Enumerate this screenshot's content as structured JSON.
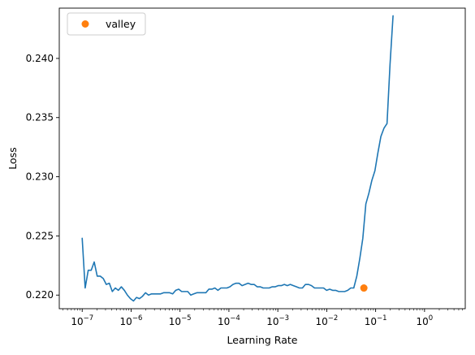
{
  "chart_data": {
    "type": "line",
    "xlabel": "Learning Rate",
    "ylabel": "Loss",
    "xscale": "log",
    "xlim": [
      3.4e-08,
      6.8
    ],
    "ylim": [
      0.21885,
      0.24425
    ],
    "x_ticks": [
      {
        "value": 1e-07,
        "base": "10",
        "exp": "−7"
      },
      {
        "value": 1e-06,
        "base": "10",
        "exp": "−6"
      },
      {
        "value": 1e-05,
        "base": "10",
        "exp": "−5"
      },
      {
        "value": 0.0001,
        "base": "10",
        "exp": "−4"
      },
      {
        "value": 0.001,
        "base": "10",
        "exp": "−3"
      },
      {
        "value": 0.01,
        "base": "10",
        "exp": "−2"
      },
      {
        "value": 0.1,
        "base": "10",
        "exp": "−1"
      },
      {
        "value": 1,
        "base": "10",
        "exp": "0"
      }
    ],
    "y_ticks": [
      {
        "value": 0.22,
        "label": "0.220"
      },
      {
        "value": 0.225,
        "label": "0.225"
      },
      {
        "value": 0.23,
        "label": "0.230"
      },
      {
        "value": 0.235,
        "label": "0.235"
      },
      {
        "value": 0.24,
        "label": "0.240"
      }
    ],
    "series": [
      {
        "color": "#1f77b4",
        "points": [
          [
            1e-07,
            0.2248
          ],
          [
            1.15e-07,
            0.2206
          ],
          [
            1.33e-07,
            0.2221
          ],
          [
            1.53e-07,
            0.2221
          ],
          [
            1.76e-07,
            0.2228
          ],
          [
            2.03e-07,
            0.2216
          ],
          [
            2.34e-07,
            0.2216
          ],
          [
            2.7e-07,
            0.2214
          ],
          [
            3.11e-07,
            0.2209
          ],
          [
            3.59e-07,
            0.221
          ],
          [
            4.13e-07,
            0.2203
          ],
          [
            4.76e-07,
            0.2206
          ],
          [
            5.49e-07,
            0.2204
          ],
          [
            6.32e-07,
            0.2207
          ],
          [
            7.29e-07,
            0.2204
          ],
          [
            8.4e-07,
            0.22
          ],
          [
            9.69e-07,
            0.2197
          ],
          [
            1.12e-06,
            0.2195
          ],
          [
            1.29e-06,
            0.2198
          ],
          [
            1.48e-06,
            0.2197
          ],
          [
            1.71e-06,
            0.2199
          ],
          [
            1.97e-06,
            0.2202
          ],
          [
            2.27e-06,
            0.22
          ],
          [
            2.62e-06,
            0.2201
          ],
          [
            3.02e-06,
            0.2201
          ],
          [
            3.48e-06,
            0.2201
          ],
          [
            4.01e-06,
            0.2201
          ],
          [
            4.62e-06,
            0.2202
          ],
          [
            5.33e-06,
            0.2202
          ],
          [
            6.14e-06,
            0.2202
          ],
          [
            7.08e-06,
            0.2201
          ],
          [
            8.16e-06,
            0.2204
          ],
          [
            9.41e-06,
            0.2205
          ],
          [
            1.08e-05,
            0.2203
          ],
          [
            1.25e-05,
            0.2203
          ],
          [
            1.44e-05,
            0.2203
          ],
          [
            1.66e-05,
            0.22
          ],
          [
            1.91e-05,
            0.2201
          ],
          [
            2.21e-05,
            0.2202
          ],
          [
            2.54e-05,
            0.2202
          ],
          [
            2.93e-05,
            0.2202
          ],
          [
            3.38e-05,
            0.2202
          ],
          [
            3.89e-05,
            0.2205
          ],
          [
            4.49e-05,
            0.2205
          ],
          [
            5.17e-05,
            0.2206
          ],
          [
            5.96e-05,
            0.2204
          ],
          [
            6.87e-05,
            0.2206
          ],
          [
            7.92e-05,
            0.2206
          ],
          [
            9.13e-05,
            0.2206
          ],
          [
            0.000105,
            0.2207
          ],
          [
            0.000121,
            0.2209
          ],
          [
            0.00014,
            0.221
          ],
          [
            0.000161,
            0.221
          ],
          [
            0.000186,
            0.2208
          ],
          [
            0.000214,
            0.2209
          ],
          [
            0.000247,
            0.221
          ],
          [
            0.000284,
            0.2209
          ],
          [
            0.000328,
            0.2209
          ],
          [
            0.000378,
            0.2207
          ],
          [
            0.000436,
            0.2207
          ],
          [
            0.000502,
            0.2206
          ],
          [
            0.000579,
            0.2206
          ],
          [
            0.000667,
            0.2206
          ],
          [
            0.000769,
            0.2207
          ],
          [
            0.000887,
            0.2207
          ],
          [
            0.00102,
            0.2208
          ],
          [
            0.00118,
            0.2208
          ],
          [
            0.00136,
            0.2209
          ],
          [
            0.00156,
            0.2208
          ],
          [
            0.0018,
            0.2209
          ],
          [
            0.00208,
            0.2208
          ],
          [
            0.0024,
            0.2207
          ],
          [
            0.00276,
            0.2206
          ],
          [
            0.00319,
            0.2206
          ],
          [
            0.00367,
            0.2209
          ],
          [
            0.00424,
            0.2209
          ],
          [
            0.00488,
            0.2208
          ],
          [
            0.00563,
            0.2206
          ],
          [
            0.00649,
            0.2206
          ],
          [
            0.00748,
            0.2206
          ],
          [
            0.00862,
            0.2206
          ],
          [
            0.00994,
            0.2204
          ],
          [
            0.0115,
            0.2205
          ],
          [
            0.0132,
            0.2204
          ],
          [
            0.0152,
            0.2204
          ],
          [
            0.0176,
            0.2203
          ],
          [
            0.0202,
            0.2203
          ],
          [
            0.0233,
            0.2203
          ],
          [
            0.0269,
            0.2204
          ],
          [
            0.031,
            0.2206
          ],
          [
            0.0357,
            0.2206
          ],
          [
            0.0412,
            0.2216
          ],
          [
            0.0475,
            0.2231
          ],
          [
            0.0547,
            0.2248
          ],
          [
            0.0631,
            0.2277
          ],
          [
            0.0727,
            0.2286
          ],
          [
            0.0838,
            0.2297
          ],
          [
            0.0966,
            0.2305
          ],
          [
            0.111,
            0.232
          ],
          [
            0.128,
            0.2334
          ],
          [
            0.148,
            0.2341
          ],
          [
            0.171,
            0.2345
          ],
          [
            0.197,
            0.2395
          ],
          [
            0.227,
            0.2436
          ]
        ]
      }
    ],
    "markers": [
      {
        "name": "valley",
        "x": 0.0575,
        "y": 0.2206,
        "color": "#ff7f0e"
      }
    ],
    "legend": {
      "position": "top-left",
      "entries": [
        {
          "label": "valley",
          "color": "#ff7f0e",
          "marker": "circle"
        }
      ]
    },
    "grid": false
  }
}
